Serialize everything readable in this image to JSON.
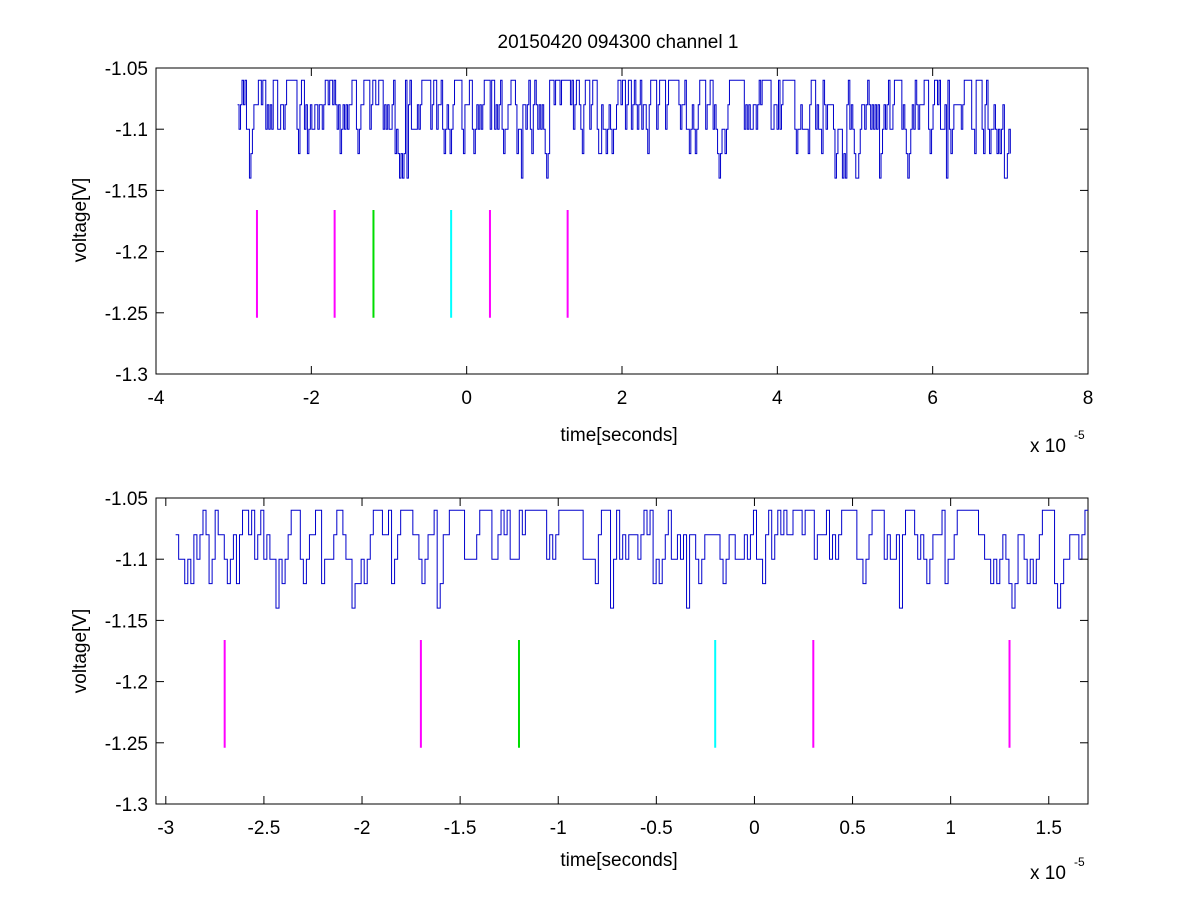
{
  "figure_title": "20150420 094300 channel 1",
  "colors": {
    "signal": "#0000cc",
    "magenta": "#ff00ff",
    "green": "#00dd00",
    "cyan": "#00ffff",
    "axes": "#000000",
    "background": "#ffffff"
  },
  "chart_data": [
    {
      "type": "line",
      "title": "20150420 094300 channel 1",
      "xlabel": "time[seconds]",
      "ylabel": "voltage[V]",
      "x_multiplier": "x 10",
      "x_multiplier_exp": "-5",
      "xlim": [
        -4,
        8
      ],
      "ylim": [
        -1.3,
        -1.05
      ],
      "xticks": [
        -4,
        -2,
        0,
        2,
        4,
        6,
        8
      ],
      "xtick_labels": [
        "-4",
        "-2",
        "0",
        "2",
        "4",
        "6",
        "8"
      ],
      "yticks": [
        -1.05,
        -1.1,
        -1.15,
        -1.2,
        -1.25,
        -1.3
      ],
      "ytick_labels": [
        "-1.05",
        "-1.1",
        "-1.15",
        "-1.2",
        "-1.25",
        "-1.3"
      ],
      "grid": false,
      "signal": {
        "x_start": -2.95,
        "x_end": 7.0,
        "levels": [
          -1.06,
          -1.08,
          -1.1,
          -1.12,
          -1.14
        ],
        "baseline": -1.1
      },
      "markers": [
        {
          "x": -2.7,
          "y0": -1.254,
          "y1": -1.166,
          "color": "magenta"
        },
        {
          "x": -1.7,
          "y0": -1.254,
          "y1": -1.166,
          "color": "magenta"
        },
        {
          "x": -1.2,
          "y0": -1.254,
          "y1": -1.166,
          "color": "green"
        },
        {
          "x": -0.2,
          "y0": -1.254,
          "y1": -1.166,
          "color": "cyan"
        },
        {
          "x": 0.3,
          "y0": -1.254,
          "y1": -1.166,
          "color": "magenta"
        },
        {
          "x": 1.3,
          "y0": -1.254,
          "y1": -1.166,
          "color": "magenta"
        }
      ]
    },
    {
      "type": "line",
      "title": "",
      "xlabel": "time[seconds]",
      "ylabel": "voltage[V]",
      "x_multiplier": "x 10",
      "x_multiplier_exp": "-5",
      "xlim": [
        -3.05,
        1.7
      ],
      "ylim": [
        -1.3,
        -1.05
      ],
      "xticks": [
        -3,
        -2.5,
        -2,
        -1.5,
        -1,
        -0.5,
        0,
        0.5,
        1,
        1.5
      ],
      "xtick_labels": [
        "-3",
        "-2.5",
        "-2",
        "-1.5",
        "-1",
        "-0.5",
        "0",
        "0.5",
        "1",
        "1.5"
      ],
      "yticks": [
        -1.05,
        -1.1,
        -1.15,
        -1.2,
        -1.25,
        -1.3
      ],
      "ytick_labels": [
        "-1.05",
        "-1.1",
        "-1.15",
        "-1.2",
        "-1.25",
        "-1.3"
      ],
      "grid": false,
      "signal": {
        "x_start": -2.95,
        "x_end": 1.7,
        "levels": [
          -1.06,
          -1.08,
          -1.1,
          -1.12,
          -1.14
        ],
        "baseline": -1.1
      },
      "markers": [
        {
          "x": -2.7,
          "y0": -1.254,
          "y1": -1.166,
          "color": "magenta"
        },
        {
          "x": -1.7,
          "y0": -1.254,
          "y1": -1.166,
          "color": "magenta"
        },
        {
          "x": -1.2,
          "y0": -1.254,
          "y1": -1.166,
          "color": "green"
        },
        {
          "x": -0.2,
          "y0": -1.254,
          "y1": -1.166,
          "color": "cyan"
        },
        {
          "x": 0.3,
          "y0": -1.254,
          "y1": -1.166,
          "color": "magenta"
        },
        {
          "x": 1.3,
          "y0": -1.254,
          "y1": -1.166,
          "color": "magenta"
        }
      ]
    }
  ]
}
